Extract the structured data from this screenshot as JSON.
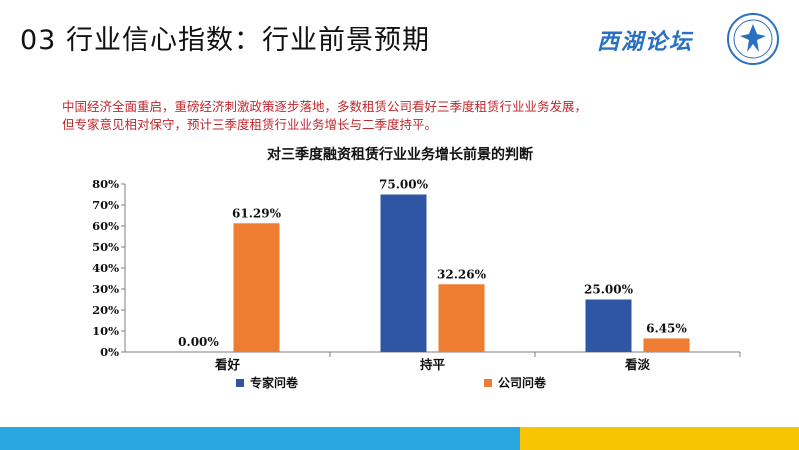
{
  "slide": {
    "title": "03 行业信心指数：行业前景预期",
    "logo_text": "西湖论坛",
    "intro_lines": [
      "中国经济全面重启，重磅经济刺激政策逐步落地，多数租赁公司看好三季度租赁行业业务发展，",
      "但专家意见相对保守，预计三季度租赁行业业务增长与二季度持平。"
    ]
  },
  "colors": {
    "expert": "#2e56a3",
    "company": "#ee7d31",
    "bar_blue": "#2aa6df",
    "bar_yellow": "#f6c400",
    "intro_text": "#c1272d"
  },
  "chart_data": {
    "type": "bar",
    "title": "对三季度融资租赁行业业务增长前景的判断",
    "categories": [
      "看好",
      "持平",
      "看淡"
    ],
    "series": [
      {
        "name": "专家问卷",
        "values": [
          0.0,
          75.0,
          25.0
        ],
        "labels": [
          "0.00%",
          "75.00%",
          "25.00%"
        ]
      },
      {
        "name": "公司问卷",
        "values": [
          61.29,
          32.26,
          6.45
        ],
        "labels": [
          "61.29%",
          "32.26%",
          "6.45%"
        ]
      }
    ],
    "ylim": [
      0,
      80
    ],
    "yticks": [
      "0%",
      "10%",
      "20%",
      "30%",
      "40%",
      "50%",
      "60%",
      "70%",
      "80%"
    ],
    "xlabel": "",
    "ylabel": "",
    "legend": "bottom",
    "grid": false
  }
}
